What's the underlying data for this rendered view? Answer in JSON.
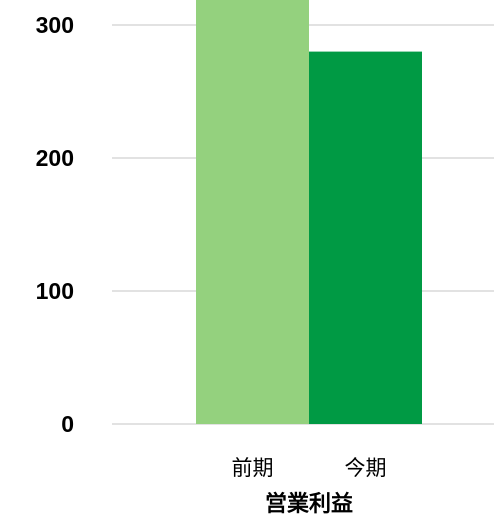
{
  "chart_data": {
    "type": "bar",
    "categories": [
      "前期",
      "今期"
    ],
    "series": [
      {
        "values": [
          340,
          280
        ]
      }
    ],
    "xlabel": "営業利益",
    "ylabel": "",
    "ylim": [
      0,
      300
    ],
    "yticks": [
      "0",
      "100",
      "200",
      "300"
    ],
    "grid": true,
    "bar_colors": [
      "#94d17e",
      "#009a44"
    ]
  }
}
